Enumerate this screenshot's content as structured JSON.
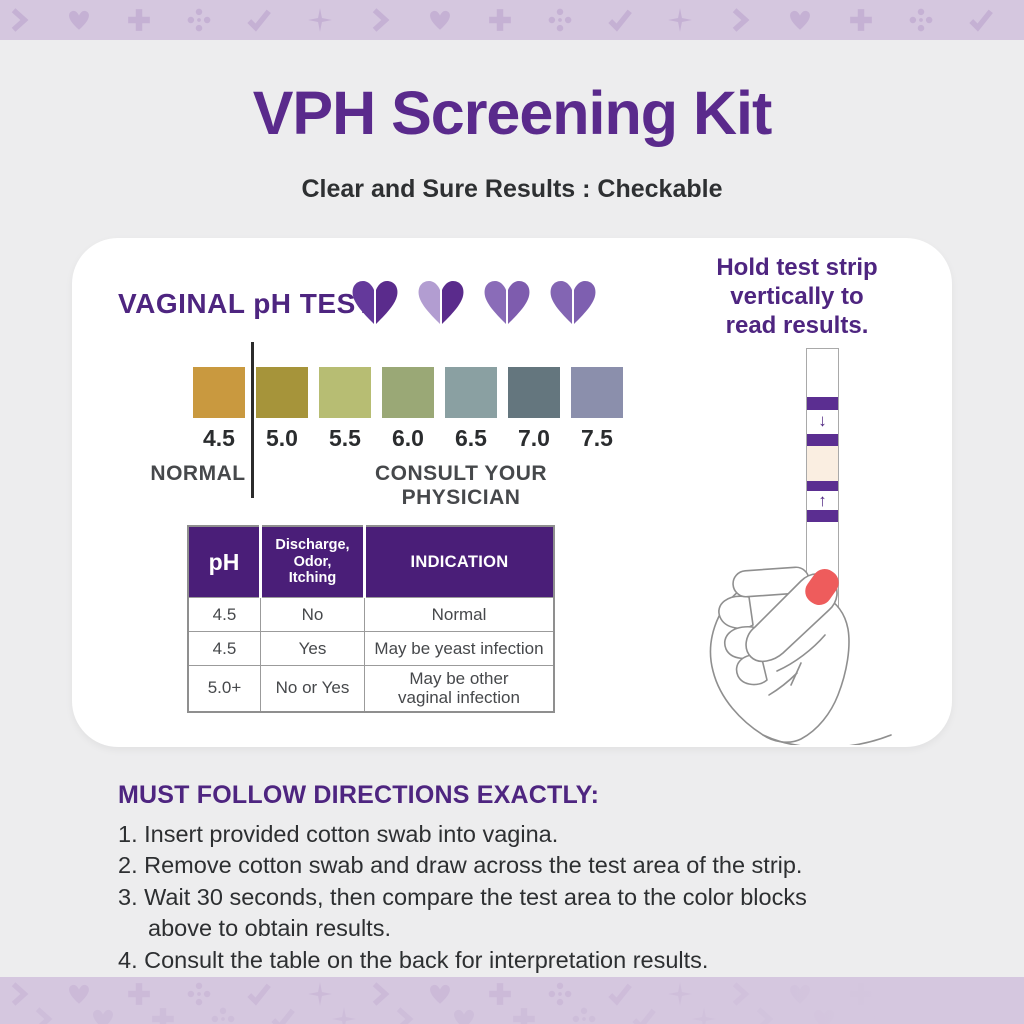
{
  "header": {
    "title": "VPH Screening Kit",
    "subtitle": "Clear and Sure Results : Checkable"
  },
  "pattern": {
    "sequence": [
      "chevron",
      "heart",
      "cross",
      "dots",
      "check",
      "star"
    ],
    "strip_color": "#d5c7df",
    "glyph_color": "#c5b1d4"
  },
  "card": {
    "title": "VAGINAL pH TEST",
    "hearts": [
      {
        "left": "#64399b",
        "right": "#5a2b8c"
      },
      {
        "left": "#b29dd1",
        "right": "#5a2b8c"
      },
      {
        "left": "#8a6cb8",
        "right": "#7e5cae"
      },
      {
        "left": "#8365b3",
        "right": "#7e5fb0"
      }
    ],
    "scale": {
      "swatches": [
        {
          "ph": "4.5",
          "color": "#c9993f"
        },
        {
          "ph": "5.0",
          "color": "#a6943a"
        },
        {
          "ph": "5.5",
          "color": "#b7bd73"
        },
        {
          "ph": "6.0",
          "color": "#9aa876"
        },
        {
          "ph": "6.5",
          "color": "#8aa0a2"
        },
        {
          "ph": "7.0",
          "color": "#64767e"
        },
        {
          "ph": "7.5",
          "color": "#8b8fac"
        }
      ],
      "normal_label": "NORMAL",
      "consult_label": "CONSULT YOUR PHYSICIAN"
    },
    "table": {
      "headers": [
        "pH",
        "Discharge,\nOdor,\nItching",
        "INDICATION"
      ],
      "rows": [
        [
          "4.5",
          "No",
          "Normal"
        ],
        [
          "4.5",
          "Yes",
          "May be yeast infection"
        ],
        [
          "5.0+",
          "No or Yes",
          "May be other\nvaginal infection"
        ]
      ]
    },
    "strip_note": "Hold test strip\nvertically to\nread results.",
    "strip": {
      "band_color": "#5b2e91",
      "test_area_color": "#faeee1",
      "arrow_down": "↓",
      "arrow_up": "↑",
      "nail_color": "#ee5c5c",
      "outline_color": "#8f8f8f"
    }
  },
  "directions": {
    "heading": "MUST FOLLOW DIRECTIONS EXACTLY:",
    "steps": [
      "1. Insert provided cotton swab into vagina.",
      "2. Remove cotton swab and draw across the test area of the strip.",
      "3. Wait 30 seconds, then compare the test area to the color blocks\nabove to obtain results.",
      "4. Consult the table on the back for interpretation results."
    ]
  },
  "colors": {
    "page_bg": "#ededee",
    "title_purple": "#5a2a8c",
    "heading_purple": "#4e2580",
    "text_dark": "#2d2f31",
    "table_header_bg": "#4a1e78",
    "table_text": "#46484b",
    "scale_divider": "#2b2b2b"
  }
}
